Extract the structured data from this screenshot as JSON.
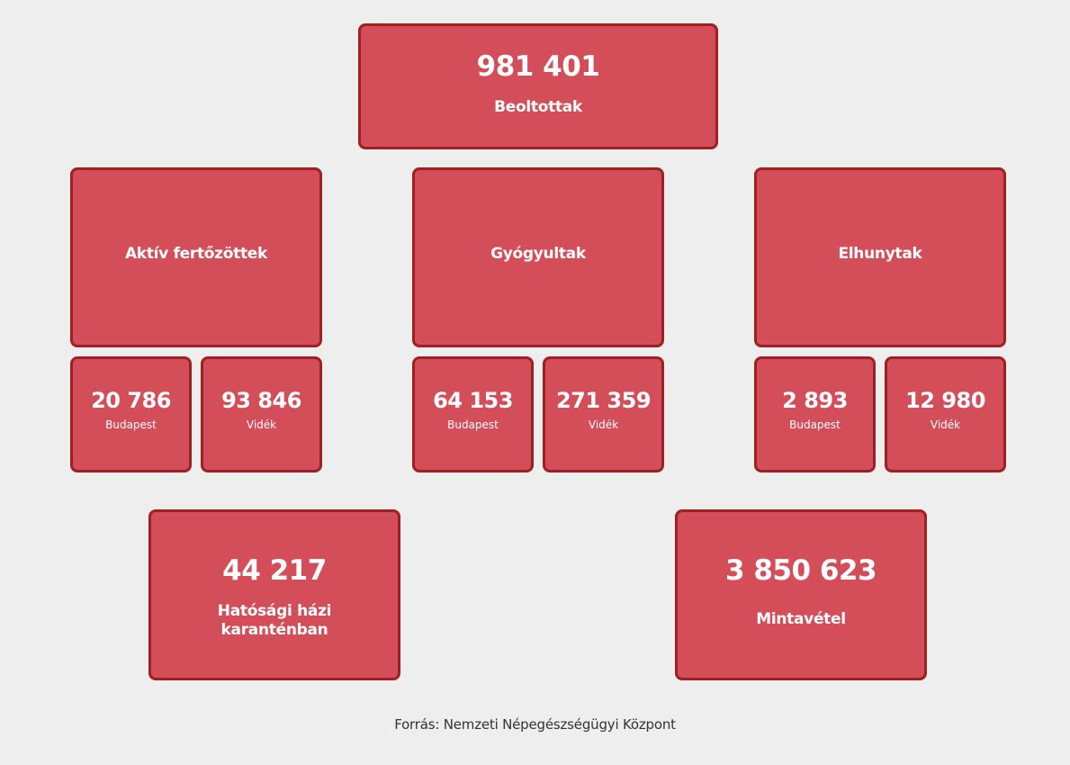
{
  "vaccinated": {
    "value": "981 401",
    "label": "Beoltottak"
  },
  "groups": [
    {
      "label": "Aktív fertőzöttek",
      "budapest": {
        "value": "20 786",
        "label": "Budapest"
      },
      "videk": {
        "value": "93 846",
        "label": "Vidék"
      }
    },
    {
      "label": "Gyógyultak",
      "budapest": {
        "value": "64 153",
        "label": "Budapest"
      },
      "videk": {
        "value": "271 359",
        "label": "Vidék"
      }
    },
    {
      "label": "Elhunytak",
      "budapest": {
        "value": "2 893",
        "label": "Budapest"
      },
      "videk": {
        "value": "12 980",
        "label": "Vidék"
      }
    }
  ],
  "quarantine": {
    "value": "44 217",
    "label_line1": "Hatósági házi",
    "label_line2": "karanténban"
  },
  "sampling": {
    "value": "3 850 623",
    "label": "Mintavétel"
  },
  "source": "Forrás: Nemzeti Népegészségügyi Központ",
  "colors": {
    "card": "#d44e5a",
    "border": "#9e2020",
    "background": "#eeeeee"
  }
}
